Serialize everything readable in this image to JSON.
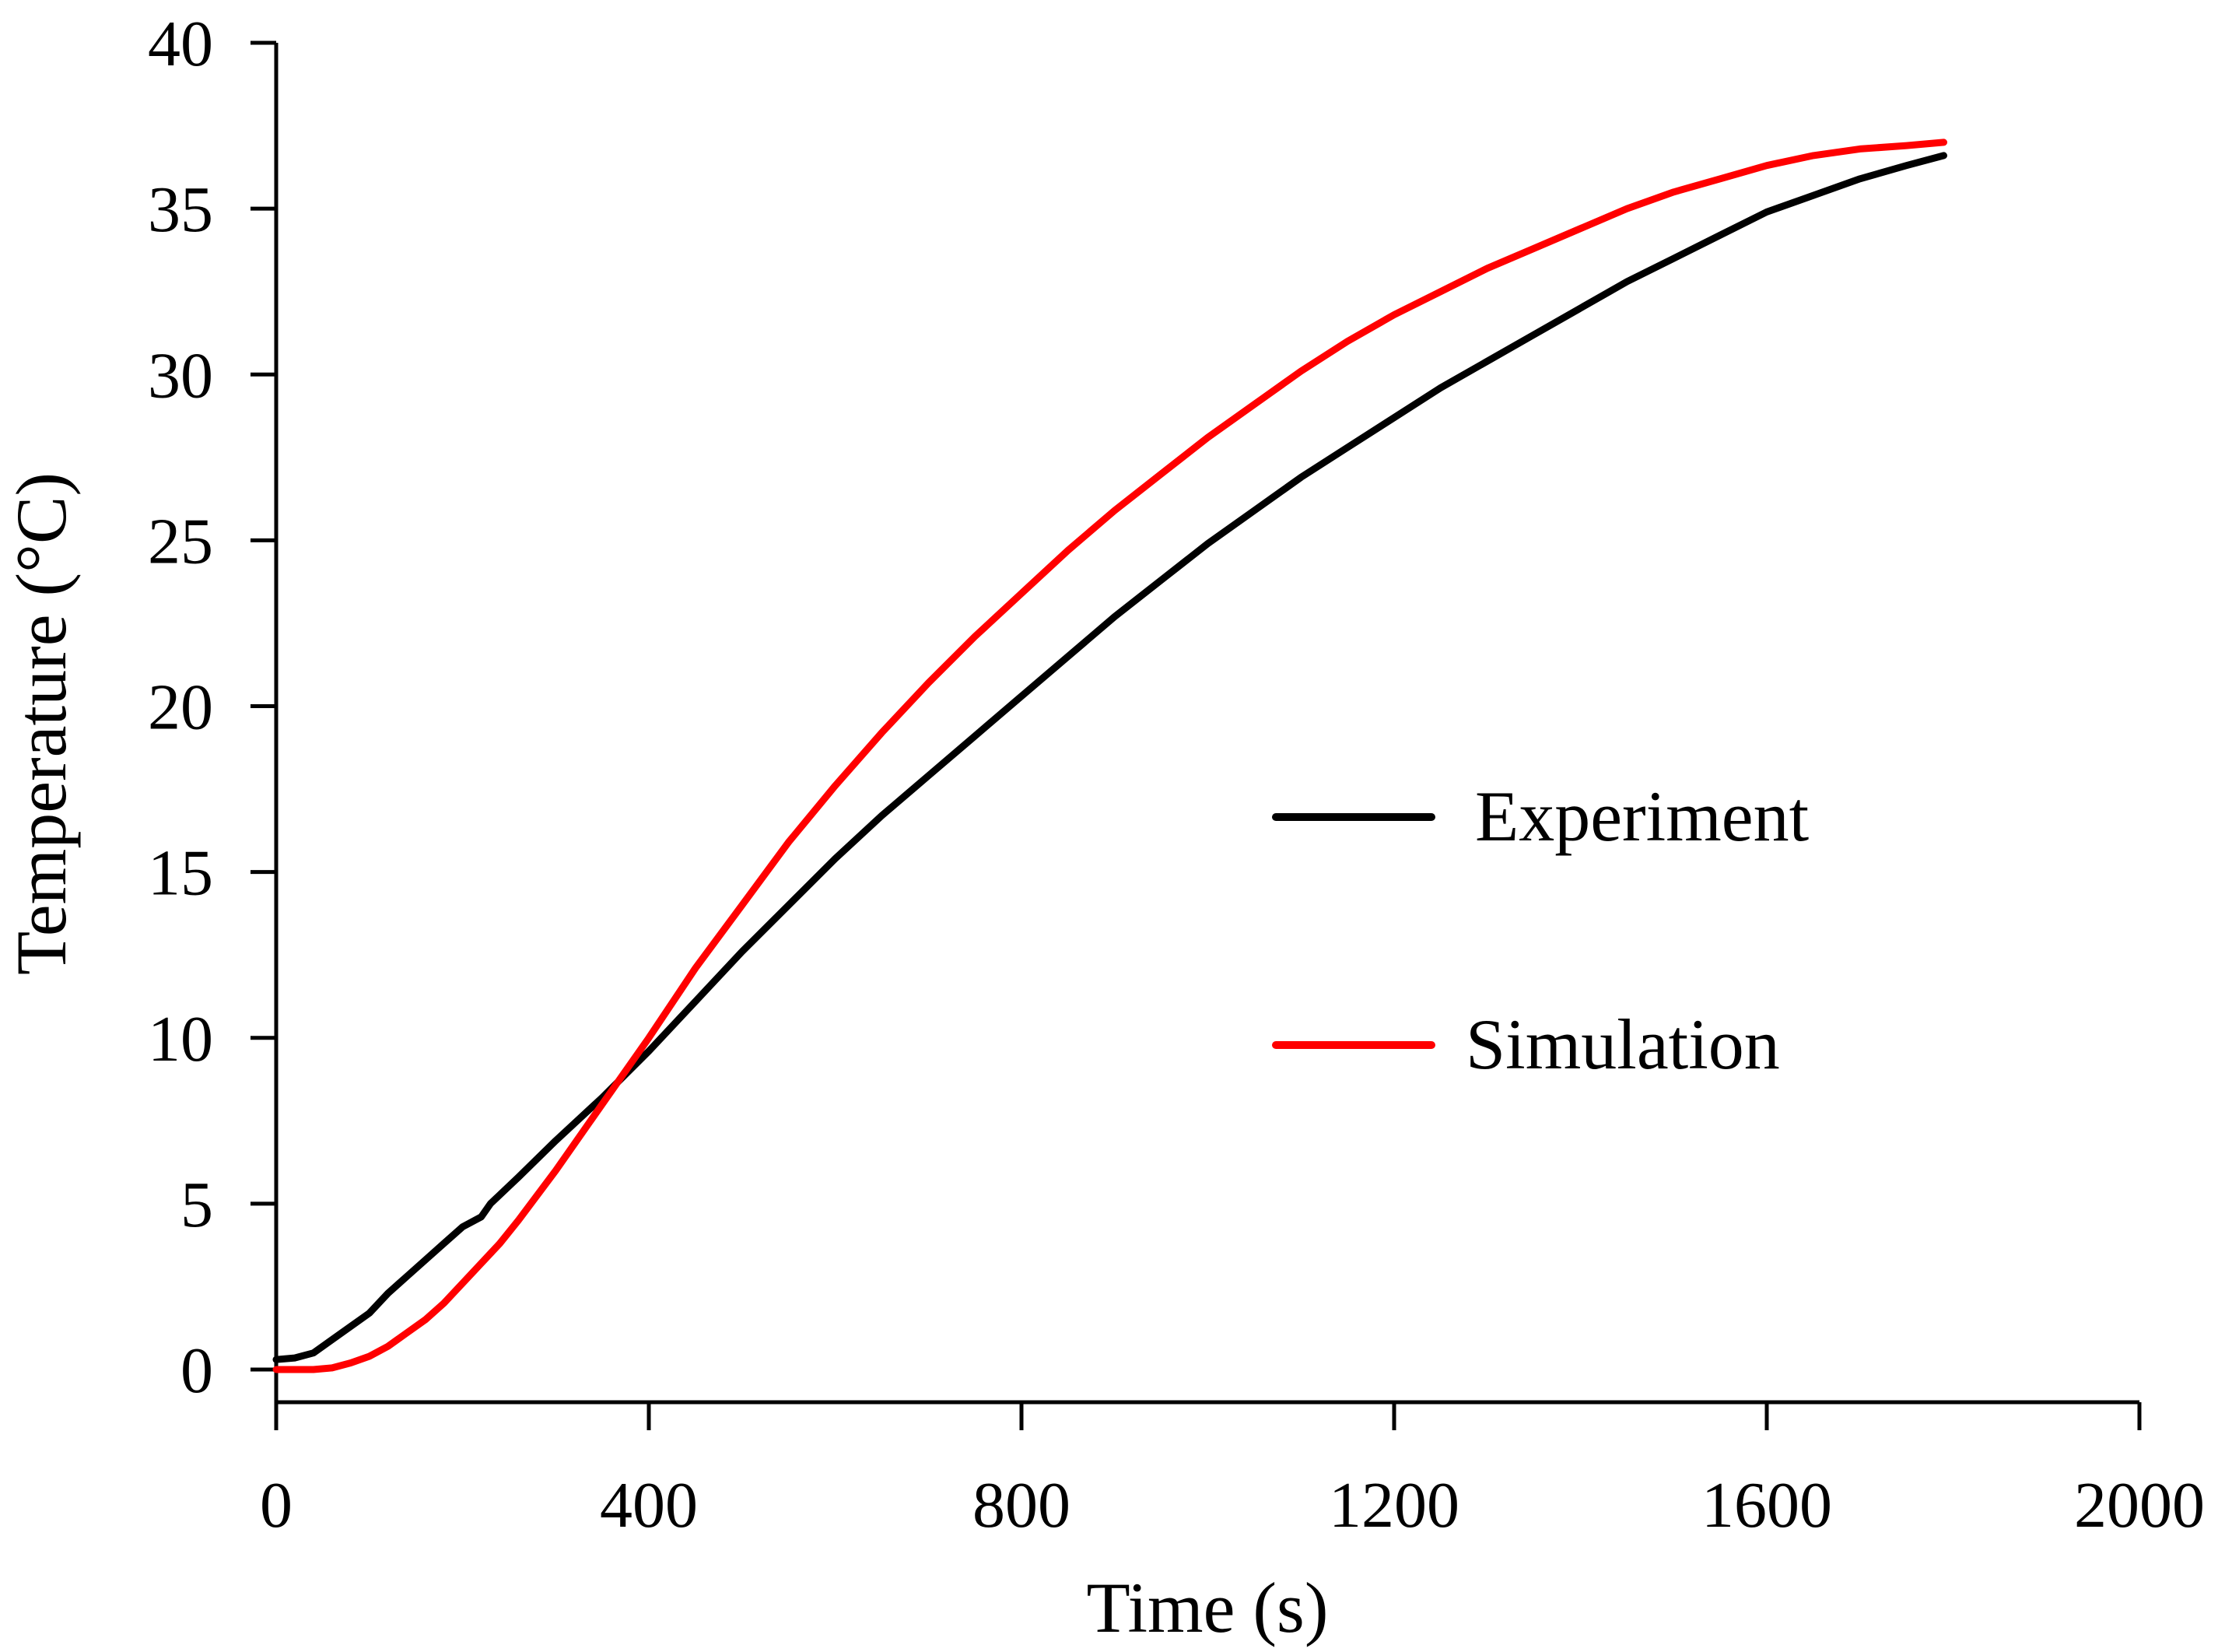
{
  "chart_data": {
    "type": "line",
    "title": "",
    "xlabel": "Time (s)",
    "ylabel": "Temperature (°C)",
    "xlim": [
      0,
      2000
    ],
    "ylim": [
      0,
      40
    ],
    "x_ticks": [
      0,
      400,
      800,
      1200,
      1600,
      2000
    ],
    "y_ticks": [
      0,
      5,
      10,
      15,
      20,
      25,
      30,
      35,
      40
    ],
    "x_tick_labels": [
      "0",
      "400",
      "800",
      "1200",
      "1600",
      "2000"
    ],
    "y_tick_labels": [
      "0",
      "5",
      "10",
      "15",
      "20",
      "25",
      "30",
      "35",
      "40"
    ],
    "grid": false,
    "legend_position": "center-right",
    "series": [
      {
        "name": "Experiment",
        "color": "#000000",
        "x": [
          0,
          20,
          40,
          60,
          80,
          100,
          120,
          140,
          160,
          180,
          200,
          220,
          230,
          260,
          300,
          350,
          400,
          450,
          500,
          550,
          600,
          650,
          700,
          750,
          800,
          850,
          900,
          950,
          1000,
          1050,
          1100,
          1150,
          1200,
          1250,
          1300,
          1350,
          1400,
          1450,
          1500,
          1550,
          1600,
          1650,
          1700,
          1750,
          1790
        ],
        "values": [
          0.3,
          0.35,
          0.5,
          0.9,
          1.3,
          1.7,
          2.3,
          2.8,
          3.3,
          3.8,
          4.3,
          4.6,
          5.0,
          5.8,
          6.9,
          8.2,
          9.6,
          11.1,
          12.6,
          14.0,
          15.4,
          16.7,
          17.9,
          19.1,
          20.3,
          21.5,
          22.7,
          23.8,
          24.9,
          25.9,
          26.9,
          27.8,
          28.7,
          29.6,
          30.4,
          31.2,
          32.0,
          32.8,
          33.5,
          34.2,
          34.9,
          35.4,
          35.9,
          36.3,
          36.6
        ]
      },
      {
        "name": "Simulation",
        "color": "#ff0000",
        "x": [
          0,
          20,
          40,
          60,
          80,
          100,
          120,
          140,
          160,
          180,
          200,
          220,
          240,
          260,
          300,
          350,
          400,
          450,
          500,
          550,
          600,
          650,
          700,
          750,
          800,
          850,
          900,
          950,
          1000,
          1050,
          1100,
          1150,
          1200,
          1250,
          1300,
          1350,
          1400,
          1450,
          1500,
          1550,
          1600,
          1650,
          1700,
          1750,
          1790
        ],
        "values": [
          0.0,
          0.0,
          0.0,
          0.05,
          0.2,
          0.4,
          0.7,
          1.1,
          1.5,
          2.0,
          2.6,
          3.2,
          3.8,
          4.5,
          6.0,
          8.0,
          10.0,
          12.1,
          14.0,
          15.9,
          17.6,
          19.2,
          20.7,
          22.1,
          23.4,
          24.7,
          25.9,
          27.0,
          28.1,
          29.1,
          30.1,
          31.0,
          31.8,
          32.5,
          33.2,
          33.8,
          34.4,
          35.0,
          35.5,
          35.9,
          36.3,
          36.6,
          36.8,
          36.9,
          37.0
        ]
      }
    ]
  }
}
